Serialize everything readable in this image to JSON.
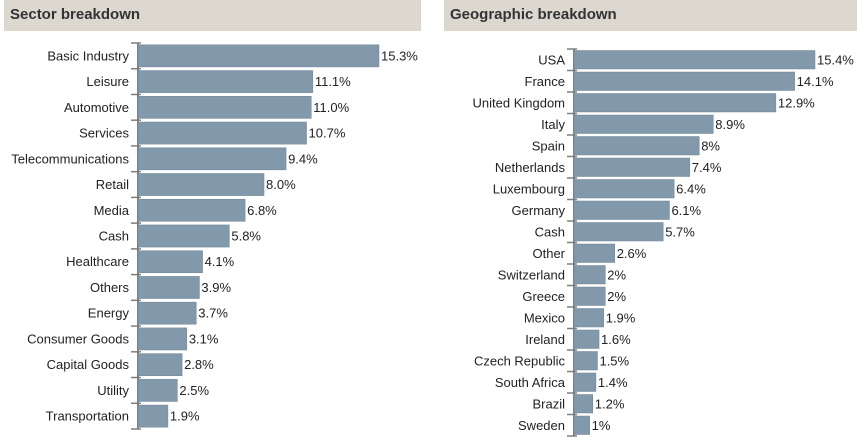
{
  "colors": {
    "bar": "#8299ab",
    "bar_stroke": "#6f8596",
    "axis": "#7f7f7f",
    "header_bg": "#dcd8cf"
  },
  "chart_data": [
    {
      "type": "bar",
      "orientation": "horizontal",
      "title": "Sector breakdown",
      "categories": [
        "Basic Industry",
        "Leisure",
        "Automotive",
        "Services",
        "Telecommunications",
        "Retail",
        "Media",
        "Cash",
        "Healthcare",
        "Others",
        "Energy",
        "Consumer Goods",
        "Capital Goods",
        "Utility",
        "Transportation"
      ],
      "values": [
        15.3,
        11.1,
        11.0,
        10.7,
        9.4,
        8.0,
        6.8,
        5.8,
        4.1,
        3.9,
        3.7,
        3.1,
        2.8,
        2.5,
        1.9
      ],
      "value_labels": [
        "15.3%",
        "11.1%",
        "11.0%",
        "10.7%",
        "9.4%",
        "8.0%",
        "6.8%",
        "5.8%",
        "4.1%",
        "3.9%",
        "3.7%",
        "3.1%",
        "2.8%",
        "2.5%",
        "1.9%"
      ],
      "xlim": [
        0,
        15.3
      ],
      "grid": false,
      "legend": "none"
    },
    {
      "type": "bar",
      "orientation": "horizontal",
      "title": "Geographic breakdown",
      "categories": [
        "USA",
        "France",
        "United Kingdom",
        "Italy",
        "Spain",
        "Netherlands",
        "Luxembourg",
        "Germany",
        "Cash",
        "Other",
        "Switzerland",
        "Greece",
        "Mexico",
        "Ireland",
        "Czech Republic",
        "South Africa",
        "Brazil",
        "Sweden"
      ],
      "values": [
        15.4,
        14.1,
        12.9,
        8.9,
        8,
        7.4,
        6.4,
        6.1,
        5.7,
        2.6,
        2,
        2,
        1.9,
        1.6,
        1.5,
        1.4,
        1.2,
        1
      ],
      "value_labels": [
        "15.4%",
        "14.1%",
        "12.9%",
        "8.9%",
        "8%",
        "7.4%",
        "6.4%",
        "6.1%",
        "5.7%",
        "2.6%",
        "2%",
        "2%",
        "1.9%",
        "1.6%",
        "1.5%",
        "1.4%",
        "1.2%",
        "1%"
      ],
      "xlim": [
        0,
        15.4
      ],
      "grid": false,
      "legend": "none"
    }
  ]
}
